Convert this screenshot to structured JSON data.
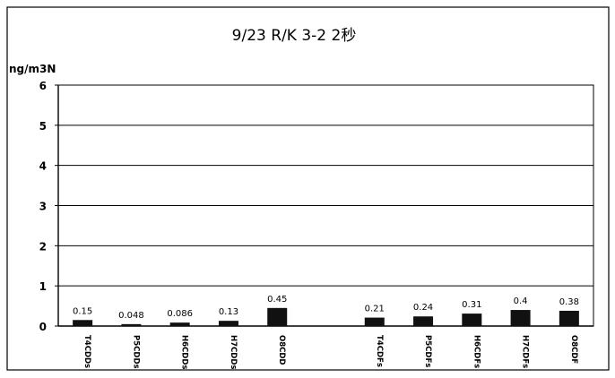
{
  "chart_data": {
    "type": "bar",
    "title": "9/23 R/K 3-2 2秒",
    "ylabel": "ng/m3N",
    "xlabel": "",
    "ylim": [
      0,
      6
    ],
    "yticks": [
      0,
      1,
      2,
      3,
      4,
      5,
      6
    ],
    "grid": true,
    "legend": "none",
    "categories": [
      "T4CDDs",
      "P5CDDs",
      "H6CDDs",
      "H7CDDs",
      "O8CDD",
      "",
      "T4CDFs",
      "P5CDFs",
      "H6CDFs",
      "H7CDFs",
      "O8CDF"
    ],
    "values": [
      0.15,
      0.048,
      0.086,
      0.13,
      0.45,
      null,
      0.21,
      0.24,
      0.31,
      0.4,
      0.38
    ],
    "value_labels": [
      "0.15",
      "0.048",
      "0.086",
      "0.13",
      "0.45",
      "",
      "0.21",
      "0.24",
      "0.31",
      "0.4",
      "0.38"
    ],
    "bar_color": "#111111"
  }
}
